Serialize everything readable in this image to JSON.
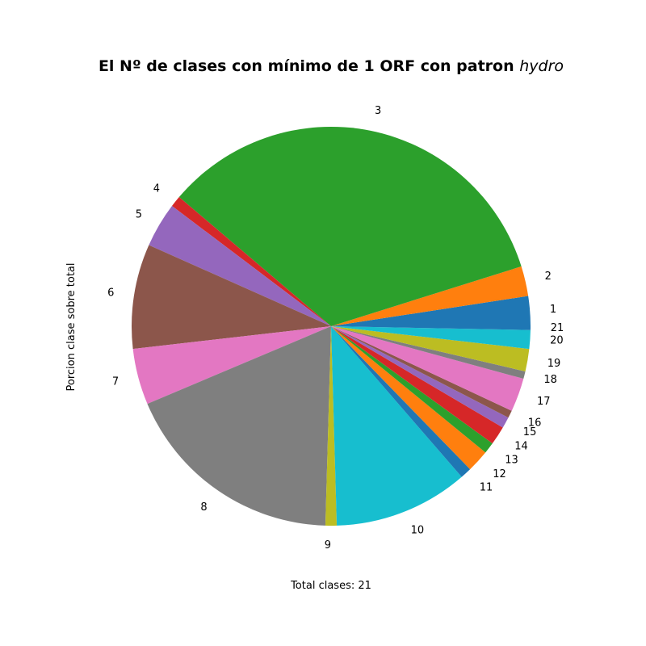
{
  "chart_data": {
    "type": "pie",
    "title": "El Nº de clases con mínimo de 1 ORF con patron",
    "title_italic": "hydro",
    "ylabel": "Porcion clase sobre total",
    "xlabel": "Total clases: 21",
    "categories": [
      "1",
      "2",
      "3",
      "4",
      "5",
      "6",
      "7",
      "8",
      "9",
      "10",
      "11",
      "12",
      "13",
      "14",
      "15",
      "16",
      "17",
      "18",
      "19",
      "20",
      "21"
    ],
    "values": [
      4.0,
      4.0,
      56.0,
      1.5,
      6.0,
      14.0,
      7.5,
      30.0,
      1.5,
      18.0,
      1.5,
      3.0,
      1.5,
      2.5,
      1.5,
      1.0,
      4.5,
      1.0,
      3.0,
      2.5,
      0.5
    ],
    "start_angle_deg": 0,
    "direction": "counterclockwise",
    "colors": [
      "#1f77b4",
      "#ff7f0e",
      "#2ca02c",
      "#d62728",
      "#9467bd",
      "#8c564b",
      "#e377c2",
      "#7f7f7f",
      "#bcbd22",
      "#17becf"
    ]
  }
}
